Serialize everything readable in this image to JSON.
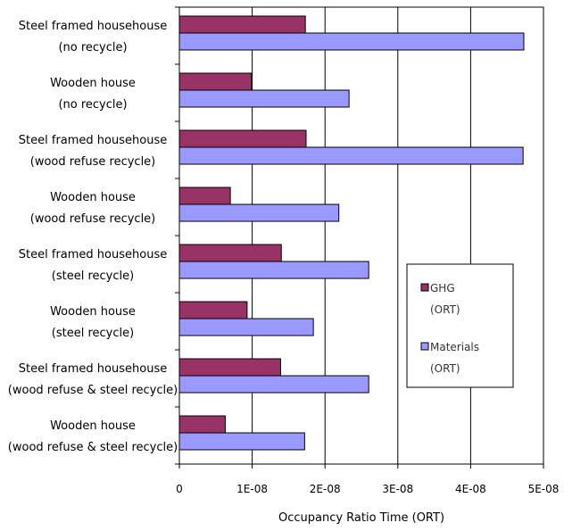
{
  "chart_data": {
    "type": "bar",
    "orientation": "horizontal",
    "categories": [
      [
        "Steel framed househouse",
        "(no recycle)"
      ],
      [
        "Wooden house",
        "(no recycle)"
      ],
      [
        "Steel framed househouse",
        "(wood refuse recycle)"
      ],
      [
        "Wooden house",
        "(wood refuse recycle)"
      ],
      [
        "Steel framed househouse",
        "(steel recycle)"
      ],
      [
        "Wooden house",
        "(steel recycle)"
      ],
      [
        "Steel framed househouse",
        "(wood refuse & steel recycle)"
      ],
      [
        "Wooden house",
        "(wood refuse & steel recycle)"
      ]
    ],
    "series": [
      {
        "name": "GHG (ORT)",
        "legend_lines": [
          "GHG",
          "(ORT)"
        ],
        "color": "#993366",
        "values": [
          1.73e-08,
          9.9e-09,
          1.74e-08,
          7e-09,
          1.4e-08,
          9.3e-09,
          1.39e-08,
          6.3e-09
        ]
      },
      {
        "name": "Materials (ORT)",
        "legend_lines": [
          "Materials",
          "(ORT)"
        ],
        "color": "#9999ff",
        "values": [
          4.73e-08,
          2.33e-08,
          4.72e-08,
          2.19e-08,
          2.6e-08,
          1.84e-08,
          2.6e-08,
          1.72e-08
        ]
      }
    ],
    "xlim": [
      0,
      5e-08
    ],
    "xticks": [
      0,
      1e-08,
      2e-08,
      3e-08,
      4e-08,
      5e-08
    ],
    "xtick_labels": [
      "0",
      "1E-08",
      "2E-08",
      "3E-08",
      "4E-08",
      "5E-08"
    ],
    "xlabel": "Occupancy Ratio Time (ORT)",
    "ylabel": "",
    "title": "",
    "grid": "vertical",
    "legend_position": "right-center"
  }
}
